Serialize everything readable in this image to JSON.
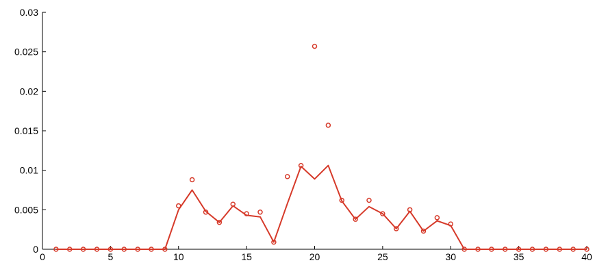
{
  "chart_data": {
    "type": "line",
    "title": "",
    "xlabel": "",
    "ylabel": "",
    "xlim": [
      0,
      40
    ],
    "ylim": [
      0,
      0.03
    ],
    "x_ticks": [
      "0",
      "5",
      "10",
      "15",
      "20",
      "25",
      "30",
      "35",
      "40"
    ],
    "y_ticks": [
      "0",
      "0.005",
      "0.01",
      "0.015",
      "0.02",
      "0.025",
      "0.03"
    ],
    "grid": false,
    "legend": "none",
    "colors": {
      "series": "#d63a2a",
      "axis": "#000000"
    },
    "series": [
      {
        "style": "line",
        "x": [
          1,
          2,
          3,
          4,
          5,
          6,
          7,
          8,
          9,
          10,
          11,
          12,
          13,
          14,
          15,
          16,
          17,
          18,
          19,
          20,
          21,
          22,
          23,
          24,
          25,
          26,
          27,
          28,
          29,
          30,
          31,
          32,
          33,
          34,
          35,
          36,
          37,
          38,
          39,
          40
        ],
        "y": [
          0,
          0,
          0,
          0,
          0,
          0,
          0,
          0,
          0,
          0.005,
          0.0075,
          0.0048,
          0.0034,
          0.0055,
          0.0043,
          0.0041,
          0.0009,
          0.0058,
          0.0105,
          0.0089,
          0.0106,
          0.0061,
          0.0038,
          0.0054,
          0.0045,
          0.0026,
          0.0048,
          0.0023,
          0.0036,
          0.003,
          0,
          0,
          0,
          0,
          0,
          0,
          0,
          0,
          0,
          0
        ]
      },
      {
        "style": "scatter",
        "x": [
          1,
          2,
          3,
          4,
          5,
          6,
          7,
          8,
          9,
          10,
          11,
          12,
          13,
          14,
          15,
          16,
          17,
          18,
          19,
          20,
          21,
          22,
          23,
          24,
          25,
          26,
          27,
          28,
          29,
          30,
          31,
          32,
          33,
          34,
          35,
          36,
          37,
          38,
          39,
          40
        ],
        "y": [
          0,
          0,
          0,
          0,
          0,
          0,
          0,
          0,
          0,
          0.0055,
          0.0088,
          0.0047,
          0.0034,
          0.0057,
          0.0045,
          0.0047,
          0.0009,
          0.0092,
          0.0106,
          0.0257,
          0.0157,
          0.0062,
          0.0038,
          0.0062,
          0.0045,
          0.0026,
          0.005,
          0.0023,
          0.004,
          0.0032,
          0,
          0,
          0,
          0,
          0,
          0,
          0,
          0,
          0,
          0
        ]
      }
    ]
  }
}
